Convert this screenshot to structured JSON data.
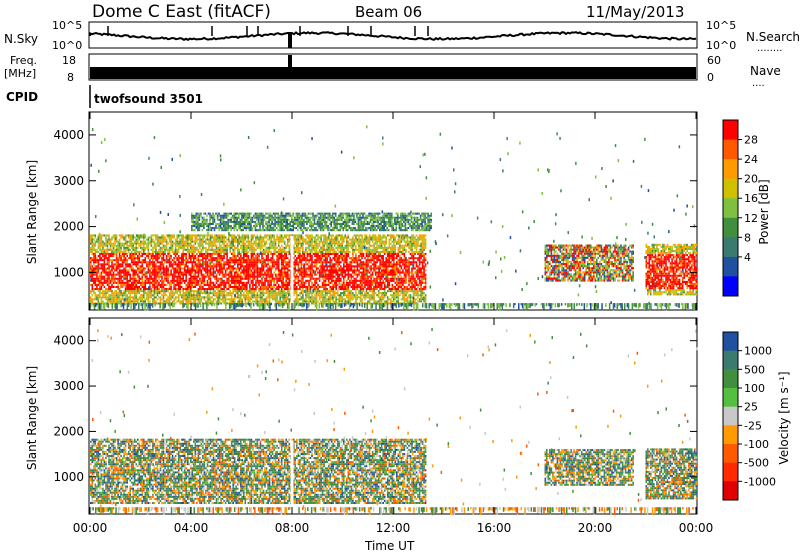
{
  "header": {
    "station": "Dome C East (fitACF)",
    "beam": "Beam 06",
    "date": "11/May/2013"
  },
  "strips": {
    "nsky_label": "N.Sky",
    "nsky_ticks": [
      "10^5",
      "10^0"
    ],
    "nsearch_label": "N.Search",
    "nsearch_dots": "........",
    "freq_label_line1": "Freq.",
    "freq_label_line2": "[MHz]",
    "freq_ticks": [
      "18",
      "8"
    ],
    "nave_ticks": [
      "60",
      "0"
    ],
    "nave_label": "Nave",
    "nave_dots": "....",
    "cpid_label": "CPID",
    "cpid_value": "twofsound 3501"
  },
  "chart_data": [
    {
      "type": "heatmap",
      "title": "",
      "xlabel": "",
      "ylabel": "Slant Range [km]",
      "xlim": [
        "00:00",
        "00:00"
      ],
      "ylim": [
        180,
        4500
      ],
      "yticks": [
        "4000",
        "3000",
        "2000",
        "1000"
      ],
      "colorbar": {
        "label": "Power [dB]",
        "ticks": [
          "28",
          "24",
          "20",
          "16",
          "12",
          "8",
          "4"
        ],
        "colors": [
          "#ff0000",
          "#ff5a00",
          "#ff9a00",
          "#d0c000",
          "#80c040",
          "#3f8f3f",
          "#3c7a70",
          "#2050a0",
          "#0000ff"
        ]
      },
      "echo_regions": [
        {
          "x_hours": [
            0,
            13.3
          ],
          "range_km": [
            300,
            1800
          ],
          "level": "high"
        },
        {
          "x_hours": [
            4,
            13.5
          ],
          "range_km": [
            1900,
            2300
          ],
          "level": "low"
        },
        {
          "x_hours": [
            18,
            21.5
          ],
          "range_km": [
            800,
            1600
          ],
          "level": "mixed"
        },
        {
          "x_hours": [
            22,
            24
          ],
          "range_km": [
            500,
            1600
          ],
          "level": "high"
        }
      ]
    },
    {
      "type": "heatmap",
      "title": "",
      "xlabel": "Time UT",
      "ylabel": "Slant Range [km]",
      "xticks": [
        "00:00",
        "04:00",
        "08:00",
        "12:00",
        "16:00",
        "20:00",
        "00:00"
      ],
      "ylim": [
        180,
        4500
      ],
      "yticks": [
        "4000",
        "3000",
        "2000",
        "1000"
      ],
      "colorbar": {
        "label": "Velocity [m s⁻¹]",
        "ticks": [
          "1000",
          "500",
          "100",
          "25",
          "-25",
          "-100",
          "-500",
          "-1000"
        ],
        "colors": [
          "#2050a0",
          "#3c7a70",
          "#3f8f3f",
          "#55c040",
          "#c8c8c8",
          "#ff9a00",
          "#ff5a00",
          "#ff2a00",
          "#e00000"
        ]
      },
      "echo_regions": [
        {
          "x_hours": [
            0,
            13.3
          ],
          "range_km": [
            400,
            1800
          ],
          "level": "mixed"
        },
        {
          "x_hours": [
            18,
            21.5
          ],
          "range_km": [
            800,
            1600
          ],
          "level": "mixed"
        },
        {
          "x_hours": [
            22,
            24
          ],
          "range_km": [
            500,
            1600
          ],
          "level": "mixed"
        }
      ]
    }
  ]
}
